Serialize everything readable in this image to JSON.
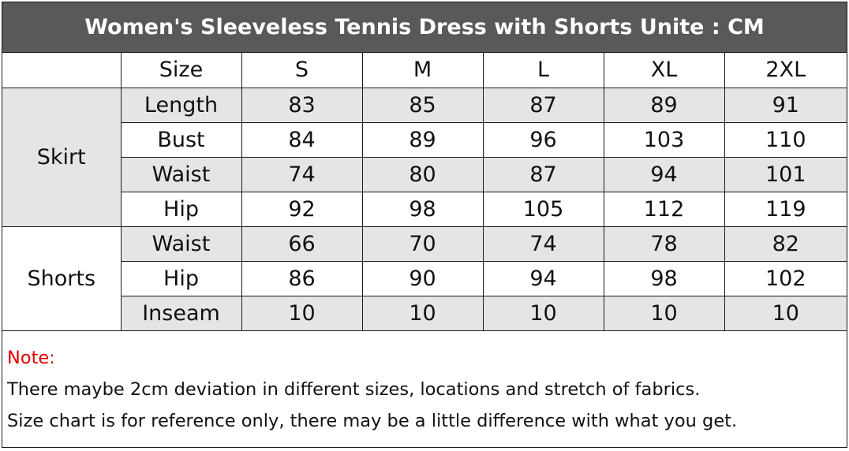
{
  "title": "Women's Sleeveless Tennis Dress with Shorts Unite : CM",
  "table": {
    "header_label": "Size",
    "sizes": [
      "S",
      "M",
      "L",
      "XL",
      "2XL"
    ],
    "groups": [
      {
        "name": "Skirt",
        "rows": [
          {
            "label": "Length",
            "values": [
              "83",
              "85",
              "87",
              "89",
              "91"
            ]
          },
          {
            "label": "Bust",
            "values": [
              "84",
              "89",
              "96",
              "103",
              "110"
            ]
          },
          {
            "label": "Waist",
            "values": [
              "74",
              "80",
              "87",
              "94",
              "101"
            ]
          },
          {
            "label": "Hip",
            "values": [
              "92",
              "98",
              "105",
              "112",
              "119"
            ]
          }
        ]
      },
      {
        "name": "Shorts",
        "rows": [
          {
            "label": "Waist",
            "values": [
              "66",
              "70",
              "74",
              "78",
              "82"
            ]
          },
          {
            "label": "Hip",
            "values": [
              "86",
              "90",
              "94",
              "98",
              "102"
            ]
          },
          {
            "label": "Inseam",
            "values": [
              "10",
              "10",
              "10",
              "10",
              "10"
            ]
          }
        ]
      }
    ]
  },
  "note": {
    "label": "Note:",
    "lines": [
      "There maybe 2cm deviation in different sizes, locations and stretch of fabrics.",
      "Size chart is for reference only, there may be a little difference with what you get."
    ]
  },
  "colors": {
    "title_bar": "#595959",
    "shaded_cell": "#e5e5e5",
    "note_label": "#e00000"
  }
}
